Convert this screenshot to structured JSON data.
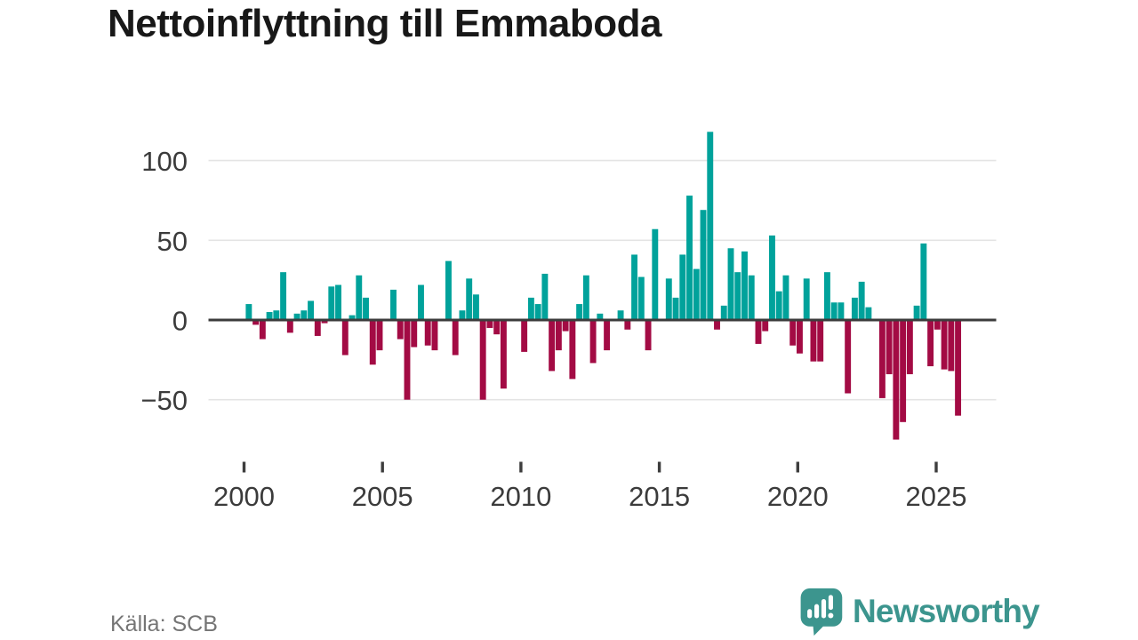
{
  "title": "Nettoinflyttning till Emmaboda",
  "source": "Källa: SCB",
  "brand": {
    "name": "Newsworthy",
    "color": "#3c958e",
    "icon": "speech-bubble-bar-chart-exclamation"
  },
  "axis": {
    "y_tick_labels": [
      "100",
      "50",
      "0",
      "−50"
    ],
    "x_tick_labels": [
      "2000",
      "2005",
      "2010",
      "2015",
      "2020",
      "2025"
    ]
  },
  "chart_data": {
    "type": "bar",
    "title": "Nettoinflyttning till Emmaboda",
    "xlabel": "",
    "ylabel": "",
    "x_unit": "quarter",
    "categories": [
      "2000-Q1",
      "2000-Q2",
      "2000-Q3",
      "2000-Q4",
      "2001-Q1",
      "2001-Q2",
      "2001-Q3",
      "2001-Q4",
      "2002-Q1",
      "2002-Q2",
      "2002-Q3",
      "2002-Q4",
      "2003-Q1",
      "2003-Q2",
      "2003-Q3",
      "2003-Q4",
      "2004-Q1",
      "2004-Q2",
      "2004-Q3",
      "2004-Q4",
      "2005-Q1",
      "2005-Q2",
      "2005-Q3",
      "2005-Q4",
      "2006-Q1",
      "2006-Q2",
      "2006-Q3",
      "2006-Q4",
      "2007-Q1",
      "2007-Q2",
      "2007-Q3",
      "2007-Q4",
      "2008-Q1",
      "2008-Q2",
      "2008-Q3",
      "2008-Q4",
      "2009-Q1",
      "2009-Q2",
      "2009-Q3",
      "2009-Q4",
      "2010-Q1",
      "2010-Q2",
      "2010-Q3",
      "2010-Q4",
      "2011-Q1",
      "2011-Q2",
      "2011-Q3",
      "2011-Q4",
      "2012-Q1",
      "2012-Q2",
      "2012-Q3",
      "2012-Q4",
      "2013-Q1",
      "2013-Q2",
      "2013-Q3",
      "2013-Q4",
      "2014-Q1",
      "2014-Q2",
      "2014-Q3",
      "2014-Q4",
      "2015-Q1",
      "2015-Q2",
      "2015-Q3",
      "2015-Q4",
      "2016-Q1",
      "2016-Q2",
      "2016-Q3",
      "2016-Q4",
      "2017-Q1",
      "2017-Q2",
      "2017-Q3",
      "2017-Q4",
      "2018-Q1",
      "2018-Q2",
      "2018-Q3",
      "2018-Q4",
      "2019-Q1",
      "2019-Q2",
      "2019-Q3",
      "2019-Q4",
      "2020-Q1",
      "2020-Q2",
      "2020-Q3",
      "2020-Q4",
      "2021-Q1",
      "2021-Q2",
      "2021-Q3",
      "2021-Q4",
      "2022-Q1",
      "2022-Q2",
      "2022-Q3",
      "2022-Q4",
      "2023-Q1",
      "2023-Q2",
      "2023-Q3",
      "2023-Q4",
      "2024-Q1",
      "2024-Q2",
      "2024-Q3",
      "2024-Q4",
      "2025-Q1",
      "2025-Q2",
      "2025-Q3",
      "2025-Q4"
    ],
    "values": [
      10,
      -3,
      -12,
      5,
      6,
      30,
      -8,
      4,
      6,
      12,
      -10,
      -2,
      21,
      22,
      -22,
      3,
      28,
      14,
      -28,
      -19,
      0,
      19,
      -12,
      -50,
      -17,
      22,
      -16,
      -19,
      0,
      37,
      -22,
      6,
      26,
      16,
      -50,
      -5,
      -9,
      -43,
      0,
      0,
      -20,
      14,
      10,
      29,
      -32,
      -19,
      -7,
      -37,
      10,
      28,
      -27,
      4,
      -19,
      0,
      6,
      -6,
      41,
      27,
      -19,
      57,
      0,
      26,
      14,
      41,
      78,
      32,
      69,
      118,
      -6,
      9,
      45,
      30,
      43,
      28,
      -15,
      -7,
      53,
      18,
      28,
      -16,
      -21,
      26,
      -26,
      -26,
      30,
      11,
      11,
      -46,
      14,
      24,
      8,
      0,
      -49,
      -34,
      -75,
      -64,
      -34,
      9,
      48,
      -29,
      -6,
      -31,
      -32,
      -60
    ],
    "yticks": [
      100,
      50,
      0,
      -50
    ],
    "xticks": [
      2000,
      2005,
      2010,
      2015,
      2020,
      2025
    ],
    "ylim": [
      -84,
      120
    ],
    "grid": "horizontal",
    "legend": "none",
    "positive_color": "#00a29b",
    "negative_color": "#a30b44",
    "zero_line_color": "#3d3d3d",
    "gridline_color": "#e4e4e4",
    "axis_text_color": "#3b3b3b"
  }
}
